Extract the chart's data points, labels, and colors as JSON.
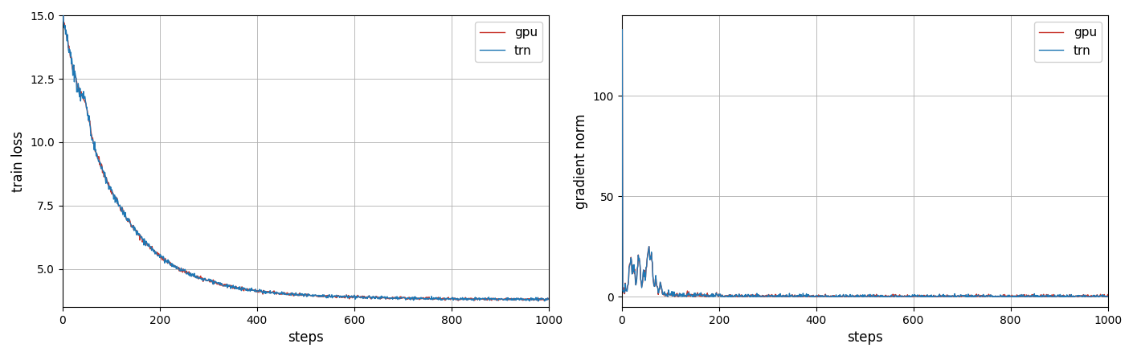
{
  "left_ylabel": "train loss",
  "right_ylabel": "gradient norm",
  "xlabel": "steps",
  "xlim_left": [
    0,
    1000
  ],
  "ylim_left": [
    3.5,
    15.0
  ],
  "xlim_right": [
    0,
    1000
  ],
  "ylim_right": [
    -5,
    140
  ],
  "yticks_left": [
    5.0,
    7.5,
    10.0,
    12.5,
    15.0
  ],
  "yticks_right": [
    0,
    50,
    100
  ],
  "xticks": [
    0,
    200,
    400,
    600,
    800,
    1000
  ],
  "gpu_color": "#c8372d",
  "trn_color": "#1f77b4",
  "legend_labels": [
    "gpu",
    "trn"
  ],
  "line_width": 1.0,
  "seed": 42
}
